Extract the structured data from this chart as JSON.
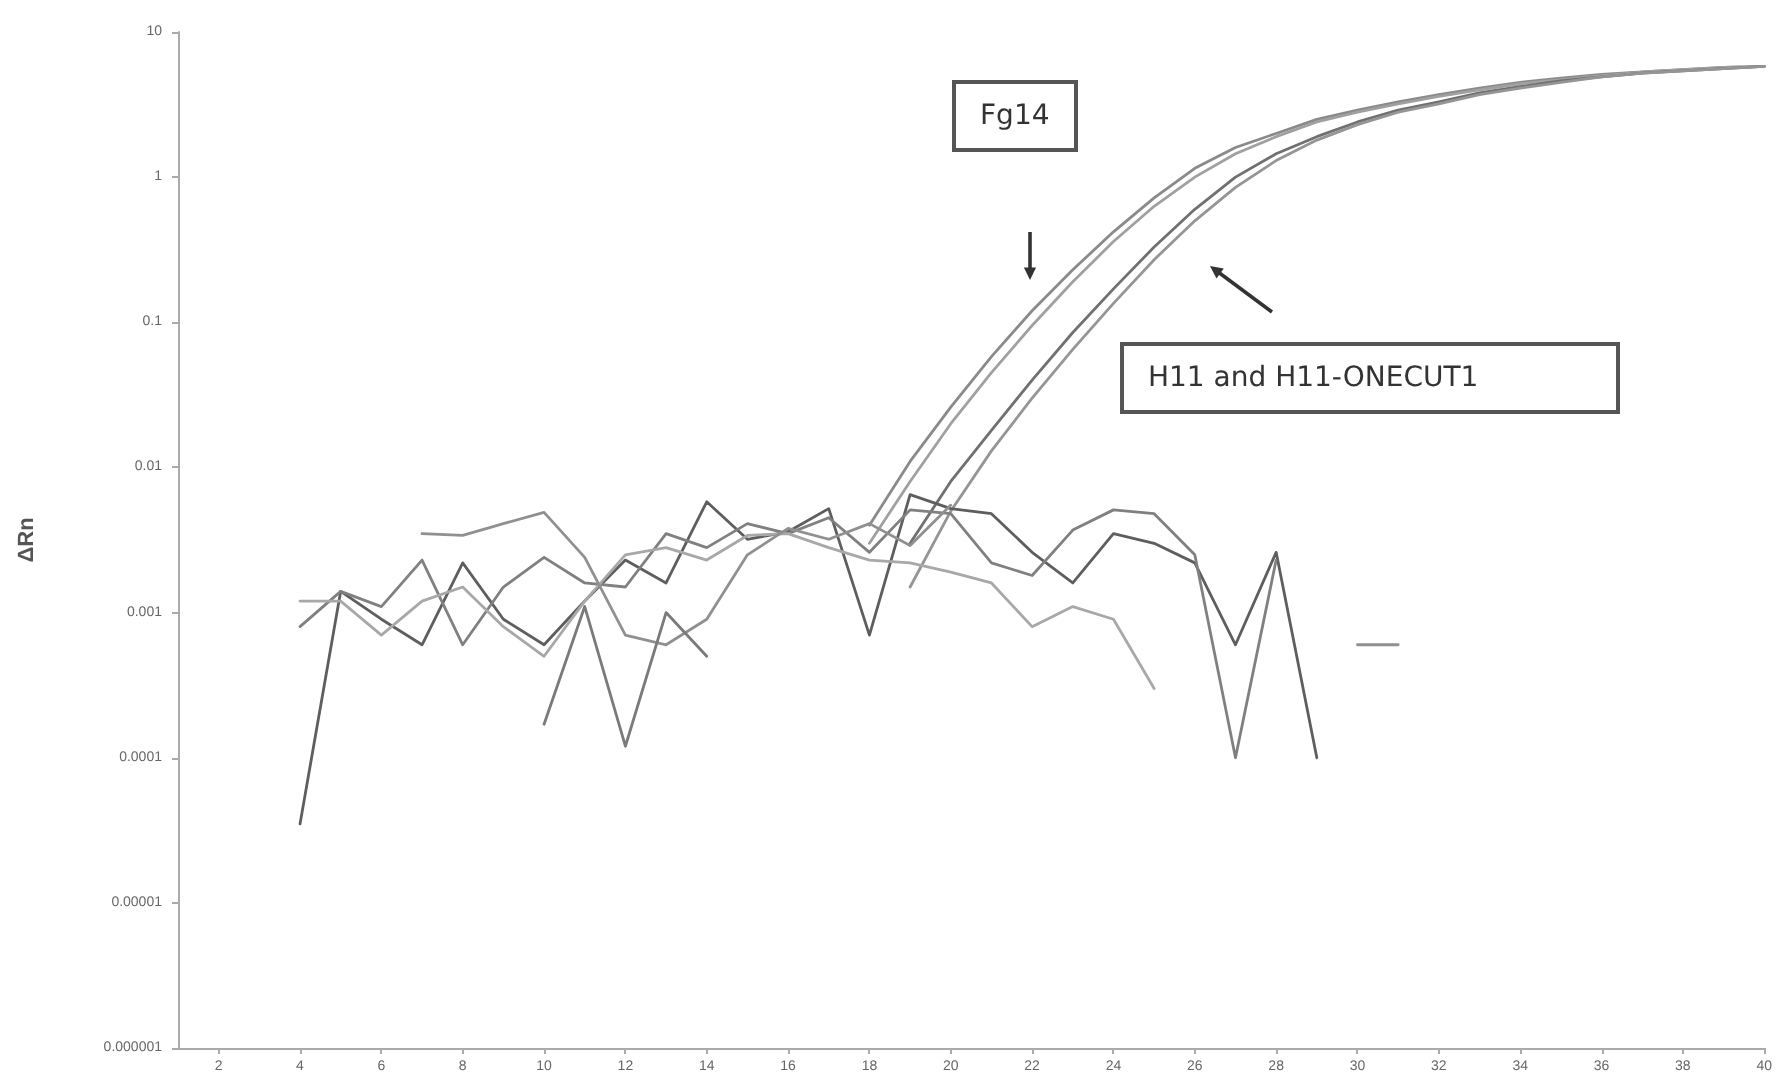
{
  "chart_data": {
    "type": "line",
    "ylabel": "ΔRn",
    "log": "y",
    "grid": false,
    "marker": "none",
    "line_style": "solid",
    "xlim": [
      1,
      40
    ],
    "xticks": [
      2,
      4,
      6,
      8,
      10,
      12,
      14,
      16,
      18,
      20,
      22,
      24,
      26,
      28,
      30,
      32,
      34,
      36,
      38,
      40
    ],
    "ylim": [
      1e-06,
      10
    ],
    "yticks": [
      {
        "value": 1e-06,
        "label": "0.000001"
      },
      {
        "value": 1e-05,
        "label": "0.00001"
      },
      0.0001,
      0.001,
      0.01,
      0.1,
      1,
      10
    ],
    "annotations": [
      "Fg14",
      "H11 and H11-ONECUT1"
    ],
    "series": [
      {
        "color": "#8a8a8a",
        "x": [
          18,
          19,
          20,
          21,
          22,
          23,
          24,
          25,
          26,
          27,
          28,
          29,
          30,
          31,
          32,
          33,
          34,
          35,
          36,
          37,
          38,
          39,
          40
        ],
        "values": [
          0.004,
          0.011,
          0.026,
          0.058,
          0.12,
          0.23,
          0.42,
          0.72,
          1.15,
          1.6,
          2.0,
          2.5,
          2.9,
          3.3,
          3.7,
          4.1,
          4.5,
          4.8,
          5.1,
          5.3,
          5.5,
          5.7,
          5.8
        ]
      },
      {
        "color": "#a0a0a0",
        "x": [
          18,
          19,
          20,
          21,
          22,
          23,
          24,
          25,
          26,
          27,
          28,
          29,
          30,
          31,
          32,
          33,
          34,
          35,
          36,
          37,
          38,
          39,
          40
        ],
        "values": [
          0.003,
          0.008,
          0.02,
          0.045,
          0.095,
          0.19,
          0.36,
          0.63,
          1.0,
          1.45,
          1.9,
          2.4,
          2.8,
          3.2,
          3.6,
          4.0,
          4.4,
          4.7,
          5.0,
          5.3,
          5.5,
          5.7,
          5.8
        ]
      },
      {
        "color": "#707070",
        "x": [
          19,
          20,
          21,
          22,
          23,
          24,
          25,
          26,
          27,
          28,
          29,
          30,
          31,
          32,
          33,
          34,
          35,
          36,
          37,
          38,
          39,
          40
        ],
        "values": [
          0.003,
          0.008,
          0.018,
          0.04,
          0.085,
          0.17,
          0.33,
          0.6,
          1.0,
          1.45,
          1.9,
          2.4,
          2.9,
          3.3,
          3.8,
          4.2,
          4.6,
          4.9,
          5.2,
          5.4,
          5.6,
          5.8
        ]
      },
      {
        "color": "#959595",
        "x": [
          19,
          20,
          21,
          22,
          23,
          24,
          25,
          26,
          27,
          28,
          29,
          30,
          31,
          32,
          33,
          34,
          35,
          36,
          37,
          38,
          39,
          40
        ],
        "values": [
          0.0015,
          0.005,
          0.013,
          0.03,
          0.065,
          0.135,
          0.27,
          0.5,
          0.85,
          1.3,
          1.8,
          2.3,
          2.8,
          3.2,
          3.7,
          4.1,
          4.5,
          4.9,
          5.2,
          5.4,
          5.6,
          5.8
        ]
      },
      {
        "color": "#5e5e5e",
        "x": [
          4,
          5,
          6,
          7,
          8,
          9,
          10,
          11,
          12,
          13,
          14,
          15,
          16,
          17,
          18,
          19,
          20,
          21,
          22,
          23,
          24,
          25,
          26,
          27,
          28,
          29
        ],
        "values": [
          3.5e-05,
          0.0014,
          0.0009,
          0.0006,
          0.0022,
          0.0009,
          0.0006,
          0.0012,
          0.0023,
          0.0016,
          0.0058,
          0.0032,
          0.0036,
          0.0052,
          0.0007,
          0.0065,
          0.0052,
          0.0048,
          0.0026,
          0.0016,
          0.0035,
          0.003,
          0.0022,
          0.0006,
          0.0026,
          0.0001
        ]
      },
      {
        "color": "#808080",
        "x": [
          4,
          5,
          6,
          7,
          8,
          9,
          10,
          11,
          12,
          13,
          14,
          15,
          16,
          17,
          18,
          19,
          20,
          21,
          22,
          23,
          24,
          25,
          26,
          27,
          28
        ],
        "values": [
          0.0008,
          0.0014,
          0.0011,
          0.0023,
          0.0006,
          0.0015,
          0.0024,
          0.0016,
          0.0015,
          0.0035,
          0.0028,
          0.0041,
          0.0035,
          0.0045,
          0.0026,
          0.0051,
          0.0048,
          0.0022,
          0.0018,
          0.0037,
          0.0051,
          0.0048,
          0.0025,
          0.0001,
          0.0023
        ]
      },
      {
        "color": "#a8a8a8",
        "x": [
          4,
          5,
          6,
          7,
          8,
          9,
          10,
          11,
          12,
          13,
          14,
          15,
          16,
          17,
          18,
          19,
          20,
          21,
          22,
          23,
          24,
          25
        ],
        "values": [
          0.0012,
          0.0012,
          0.0007,
          0.0012,
          0.0015,
          0.0008,
          0.0005,
          0.0012,
          0.0025,
          0.0028,
          0.0023,
          0.0034,
          0.0035,
          0.0028,
          0.0023,
          0.0022,
          0.0019,
          0.0016,
          0.0008,
          0.0011,
          0.0009,
          0.0003
        ]
      },
      {
        "color": "#909090",
        "x": [
          7,
          8,
          9,
          10,
          11,
          12,
          13,
          14,
          15,
          16,
          17,
          18,
          19,
          20
        ],
        "values": [
          0.0035,
          0.0034,
          0.0041,
          0.0049,
          0.0024,
          0.0007,
          0.0006,
          0.0009,
          0.0025,
          0.0038,
          0.0032,
          0.0041,
          0.0029,
          0.0055
        ]
      },
      {
        "color": "#7a7a7a",
        "x": [
          10,
          11,
          12,
          13,
          14
        ],
        "values": [
          0.00017,
          0.0011,
          0.00012,
          0.001,
          0.0005
        ]
      },
      {
        "color": "#909090",
        "x": [
          30,
          31
        ],
        "values": [
          0.0006,
          0.0006
        ]
      }
    ]
  }
}
